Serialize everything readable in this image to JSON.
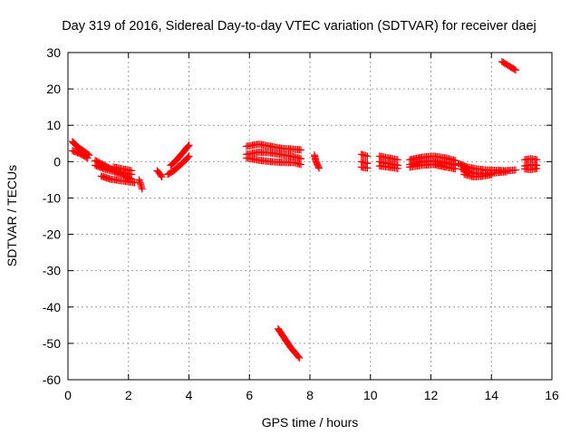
{
  "chart_data": {
    "type": "scatter",
    "title": "Day 319 of 2016, Sidereal Day-to-day VTEC variation (SDTVAR) for receiver daej",
    "xlabel": "GPS time / hours",
    "ylabel": "SDTVAR / TECUs",
    "xlim": [
      0,
      16
    ],
    "ylim": [
      -60,
      30
    ],
    "xticks": [
      0,
      2,
      4,
      6,
      8,
      10,
      12,
      14,
      16
    ],
    "yticks": [
      -60,
      -50,
      -40,
      -30,
      -20,
      -10,
      0,
      10,
      20,
      30
    ],
    "grid": true,
    "marker": "plus",
    "color": "#ff0000",
    "series": [
      {
        "segments": [
          [
            [
              0.15,
              5.5
            ],
            [
              0.3,
              4.2
            ],
            [
              0.5,
              3.0
            ],
            [
              0.7,
              1.8
            ]
          ],
          [
            [
              0.15,
              3.0
            ],
            [
              0.4,
              2.2
            ],
            [
              0.65,
              1.0
            ]
          ],
          [
            [
              0.9,
              0.3
            ],
            [
              1.2,
              -1.0
            ],
            [
              1.5,
              -2.3
            ],
            [
              1.8,
              -3.0
            ],
            [
              2.1,
              -3.5
            ]
          ],
          [
            [
              0.9,
              -1.0
            ],
            [
              1.2,
              -2.0
            ],
            [
              1.5,
              -2.7
            ],
            [
              1.8,
              -3.5
            ],
            [
              2.1,
              -4.8
            ]
          ],
          [
            [
              1.1,
              -4.0
            ],
            [
              1.4,
              -4.8
            ],
            [
              1.7,
              -5.2
            ],
            [
              2.0,
              -5.5
            ],
            [
              2.2,
              -5.8
            ]
          ],
          [
            [
              1.5,
              -1.5
            ],
            [
              1.8,
              -2.0
            ],
            [
              2.1,
              -2.5
            ]
          ],
          [
            [
              2.35,
              -5.0
            ],
            [
              2.4,
              -6.2
            ],
            [
              2.45,
              -7.5
            ]
          ],
          [
            [
              2.95,
              -2.5
            ],
            [
              3.05,
              -3.5
            ],
            [
              3.1,
              -4.2
            ]
          ],
          [
            [
              3.4,
              -1.0
            ],
            [
              3.6,
              0.5
            ],
            [
              3.8,
              2.5
            ],
            [
              4.0,
              4.5
            ]
          ],
          [
            [
              3.3,
              -3.5
            ],
            [
              3.5,
              -2.5
            ],
            [
              3.7,
              -1.0
            ],
            [
              3.9,
              0.5
            ],
            [
              4.0,
              1.5
            ]
          ],
          [
            [
              5.9,
              4.2
            ],
            [
              6.3,
              4.8
            ],
            [
              6.7,
              4.2
            ],
            [
              7.1,
              3.6
            ],
            [
              7.5,
              3.4
            ],
            [
              7.7,
              3.2
            ]
          ],
          [
            [
              5.9,
              2.0
            ],
            [
              6.3,
              2.6
            ],
            [
              6.7,
              2.4
            ],
            [
              7.1,
              1.9
            ],
            [
              7.5,
              1.3
            ],
            [
              7.7,
              0.8
            ]
          ],
          [
            [
              5.9,
              1.0
            ],
            [
              6.3,
              0.4
            ],
            [
              6.7,
              0.0
            ],
            [
              7.1,
              -0.2
            ],
            [
              7.5,
              -0.3
            ],
            [
              7.7,
              -0.8
            ]
          ],
          [
            [
              6.95,
              -46.0
            ],
            [
              7.15,
              -48.5
            ],
            [
              7.35,
              -51.0
            ],
            [
              7.55,
              -53.0
            ],
            [
              7.65,
              -54.0
            ]
          ],
          [
            [
              8.15,
              1.8
            ],
            [
              8.2,
              0.0
            ],
            [
              8.3,
              -1.8
            ]
          ],
          [
            [
              9.7,
              2.0
            ],
            [
              9.9,
              1.5
            ]
          ],
          [
            [
              9.7,
              0.0
            ],
            [
              9.9,
              -0.5
            ]
          ],
          [
            [
              9.7,
              -1.5
            ],
            [
              9.9,
              -1.8
            ]
          ],
          [
            [
              10.3,
              1.5
            ],
            [
              10.6,
              1.0
            ],
            [
              10.9,
              0.5
            ]
          ],
          [
            [
              10.3,
              0.0
            ],
            [
              10.6,
              -0.5
            ],
            [
              10.9,
              -1.0
            ]
          ],
          [
            [
              10.3,
              -1.2
            ],
            [
              10.6,
              -1.5
            ],
            [
              10.9,
              -1.9
            ]
          ],
          [
            [
              11.3,
              0.5
            ],
            [
              11.7,
              1.2
            ],
            [
              12.1,
              1.5
            ],
            [
              12.5,
              1.0
            ],
            [
              12.8,
              0.3
            ]
          ],
          [
            [
              11.3,
              -0.8
            ],
            [
              11.7,
              0.0
            ],
            [
              12.1,
              0.2
            ],
            [
              12.5,
              -0.3
            ],
            [
              12.8,
              -1.0
            ]
          ],
          [
            [
              11.3,
              -1.5
            ],
            [
              11.7,
              -1.0
            ],
            [
              12.1,
              -0.8
            ],
            [
              12.5,
              -1.5
            ],
            [
              12.8,
              -2.0
            ]
          ],
          [
            [
              12.9,
              -0.5
            ],
            [
              13.2,
              -1.5
            ],
            [
              13.5,
              -2.0
            ],
            [
              13.8,
              -2.3
            ],
            [
              14.1,
              -2.4
            ],
            [
              14.5,
              -2.5
            ],
            [
              14.8,
              -2.3
            ]
          ],
          [
            [
              13.0,
              -2.0
            ],
            [
              13.3,
              -3.0
            ],
            [
              13.6,
              -3.4
            ],
            [
              13.9,
              -3.3
            ],
            [
              14.2,
              -3.0
            ],
            [
              14.5,
              -2.8
            ]
          ],
          [
            [
              13.1,
              -3.5
            ],
            [
              13.4,
              -4.2
            ],
            [
              13.7,
              -4.0
            ],
            [
              14.0,
              -3.6
            ]
          ],
          [
            [
              14.35,
              27.5
            ],
            [
              14.6,
              26.2
            ],
            [
              14.8,
              25.2
            ]
          ],
          [
            [
              15.1,
              0.5
            ],
            [
              15.3,
              0.8
            ],
            [
              15.5,
              0.5
            ]
          ],
          [
            [
              15.1,
              -1.2
            ],
            [
              15.3,
              -0.8
            ],
            [
              15.5,
              -1.0
            ]
          ],
          [
            [
              15.1,
              -2.0
            ],
            [
              15.3,
              -2.2
            ],
            [
              15.5,
              -1.9
            ]
          ]
        ]
      }
    ]
  }
}
